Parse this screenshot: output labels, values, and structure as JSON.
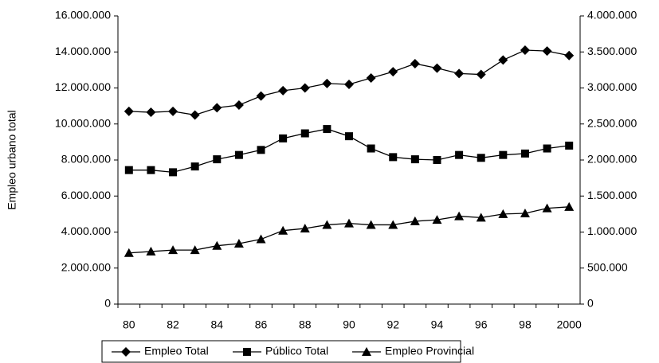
{
  "chart_data": {
    "type": "line",
    "y_label": "Empleo urbano total",
    "categories": [
      "80",
      null,
      "82",
      null,
      "84",
      null,
      "86",
      null,
      "88",
      null,
      "90",
      null,
      "92",
      null,
      "94",
      null,
      "96",
      null,
      "98",
      null,
      "2000"
    ],
    "ylim": [
      0,
      16000000
    ],
    "yticks": [
      0,
      {
        "value": 2000000,
        "label": "2.000.000"
      },
      {
        "value": 4000000,
        "label": "4.000.000"
      },
      {
        "value": 6000000,
        "label": "6.000.000"
      },
      {
        "value": 8000000,
        "label": "8.000.000"
      },
      {
        "value": 10000000,
        "label": "10.000.000"
      },
      {
        "value": 12000000,
        "label": "12.000.000"
      },
      {
        "value": 14000000,
        "label": "14.000.000"
      },
      {
        "value": 16000000,
        "label": "16.000.000"
      }
    ],
    "y2lim": [
      0,
      4000000
    ],
    "y2ticks": [
      0,
      {
        "value": 500000,
        "label": "500.000"
      },
      {
        "value": 1000000,
        "label": "1.000.000"
      },
      {
        "value": 1500000,
        "label": "1.500.000"
      },
      {
        "value": 2000000,
        "label": "2.000.000"
      },
      {
        "value": 2500000,
        "label": "2.500.000"
      },
      {
        "value": 3000000,
        "label": "3.000.000"
      },
      {
        "value": 3500000,
        "label": "3.500.000"
      },
      {
        "value": 4000000,
        "label": "4.000.000"
      }
    ],
    "legend": "bottom",
    "series": [
      {
        "name": "Empleo Total",
        "color": "#000000",
        "marker": "diamond",
        "values": [
          10700000,
          10650000,
          10700000,
          10500000,
          10900000,
          11050000,
          11550000,
          11850000,
          12000000,
          12250000,
          12200000,
          12550000,
          12900000,
          13350000,
          13100000,
          12800000,
          12750000,
          13550000,
          14100000,
          14050000,
          13800000
        ]
      },
      {
        "name": "Público Total",
        "color": "#000000",
        "marker": "square",
        "axis": "y2",
        "values": [
          1860000,
          1860000,
          1830000,
          1910000,
          2010000,
          2070000,
          2140000,
          2300000,
          2370000,
          2430000,
          2330000,
          2160000,
          2040000,
          2010000,
          2000000,
          2070000,
          2030000,
          2070000,
          2090000,
          2160000,
          2200000
        ]
      },
      {
        "name": "Empleo Provincial",
        "color": "#000000",
        "marker": "triangle",
        "axis": "y2",
        "values": [
          710000,
          730000,
          750000,
          750000,
          810000,
          840000,
          900000,
          1020000,
          1050000,
          1100000,
          1120000,
          1100000,
          1100000,
          1150000,
          1170000,
          1220000,
          1200000,
          1250000,
          1260000,
          1330000,
          1350000
        ]
      }
    ]
  }
}
